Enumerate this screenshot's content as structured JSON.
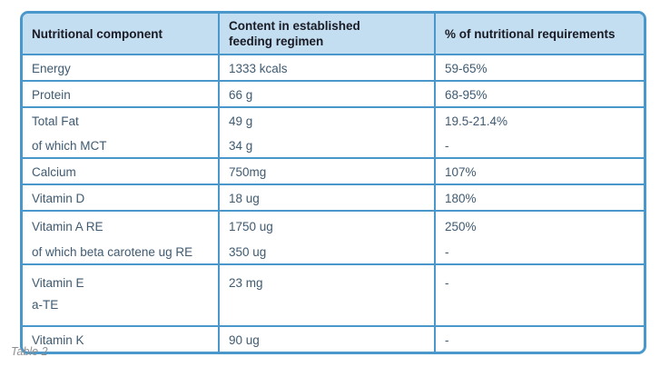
{
  "colors": {
    "border-blue": "#4a97cb",
    "header-bg": "#c3def1",
    "header-text": "#191a24",
    "body-text": "#3f5a71",
    "caption-text": "#8f9094"
  },
  "table": {
    "caption": "Table 2",
    "columns": [
      "Nutritional component",
      "Content in established\nfeeding regimen",
      "% of nutritional requirements"
    ],
    "rows": [
      {
        "component": [
          "Energy"
        ],
        "content": [
          "1333 kcals"
        ],
        "percent": [
          "59-65%"
        ]
      },
      {
        "component": [
          "Protein"
        ],
        "content": [
          "66 g"
        ],
        "percent": [
          "68-95%"
        ]
      },
      {
        "component": [
          "Total Fat",
          "of which MCT"
        ],
        "content": [
          "49 g",
          "34 g"
        ],
        "percent": [
          "19.5-21.4%",
          "-"
        ]
      },
      {
        "component": [
          "Calcium"
        ],
        "content": [
          "750mg"
        ],
        "percent": [
          "107%"
        ]
      },
      {
        "component": [
          "Vitamin D"
        ],
        "content": [
          "18 ug"
        ],
        "percent": [
          "180%"
        ]
      },
      {
        "component": [
          "Vitamin A RE",
          "of which beta carotene ug RE"
        ],
        "content": [
          "1750 ug",
          "350 ug"
        ],
        "percent": [
          "250%",
          "-"
        ]
      },
      {
        "component": [
          "Vitamin E",
          "a-TE"
        ],
        "content": [
          "23 mg"
        ],
        "percent": [
          "-"
        ]
      },
      {
        "component": [
          "Vitamin K"
        ],
        "content": [
          "90 ug"
        ],
        "percent": [
          "-"
        ]
      }
    ]
  }
}
